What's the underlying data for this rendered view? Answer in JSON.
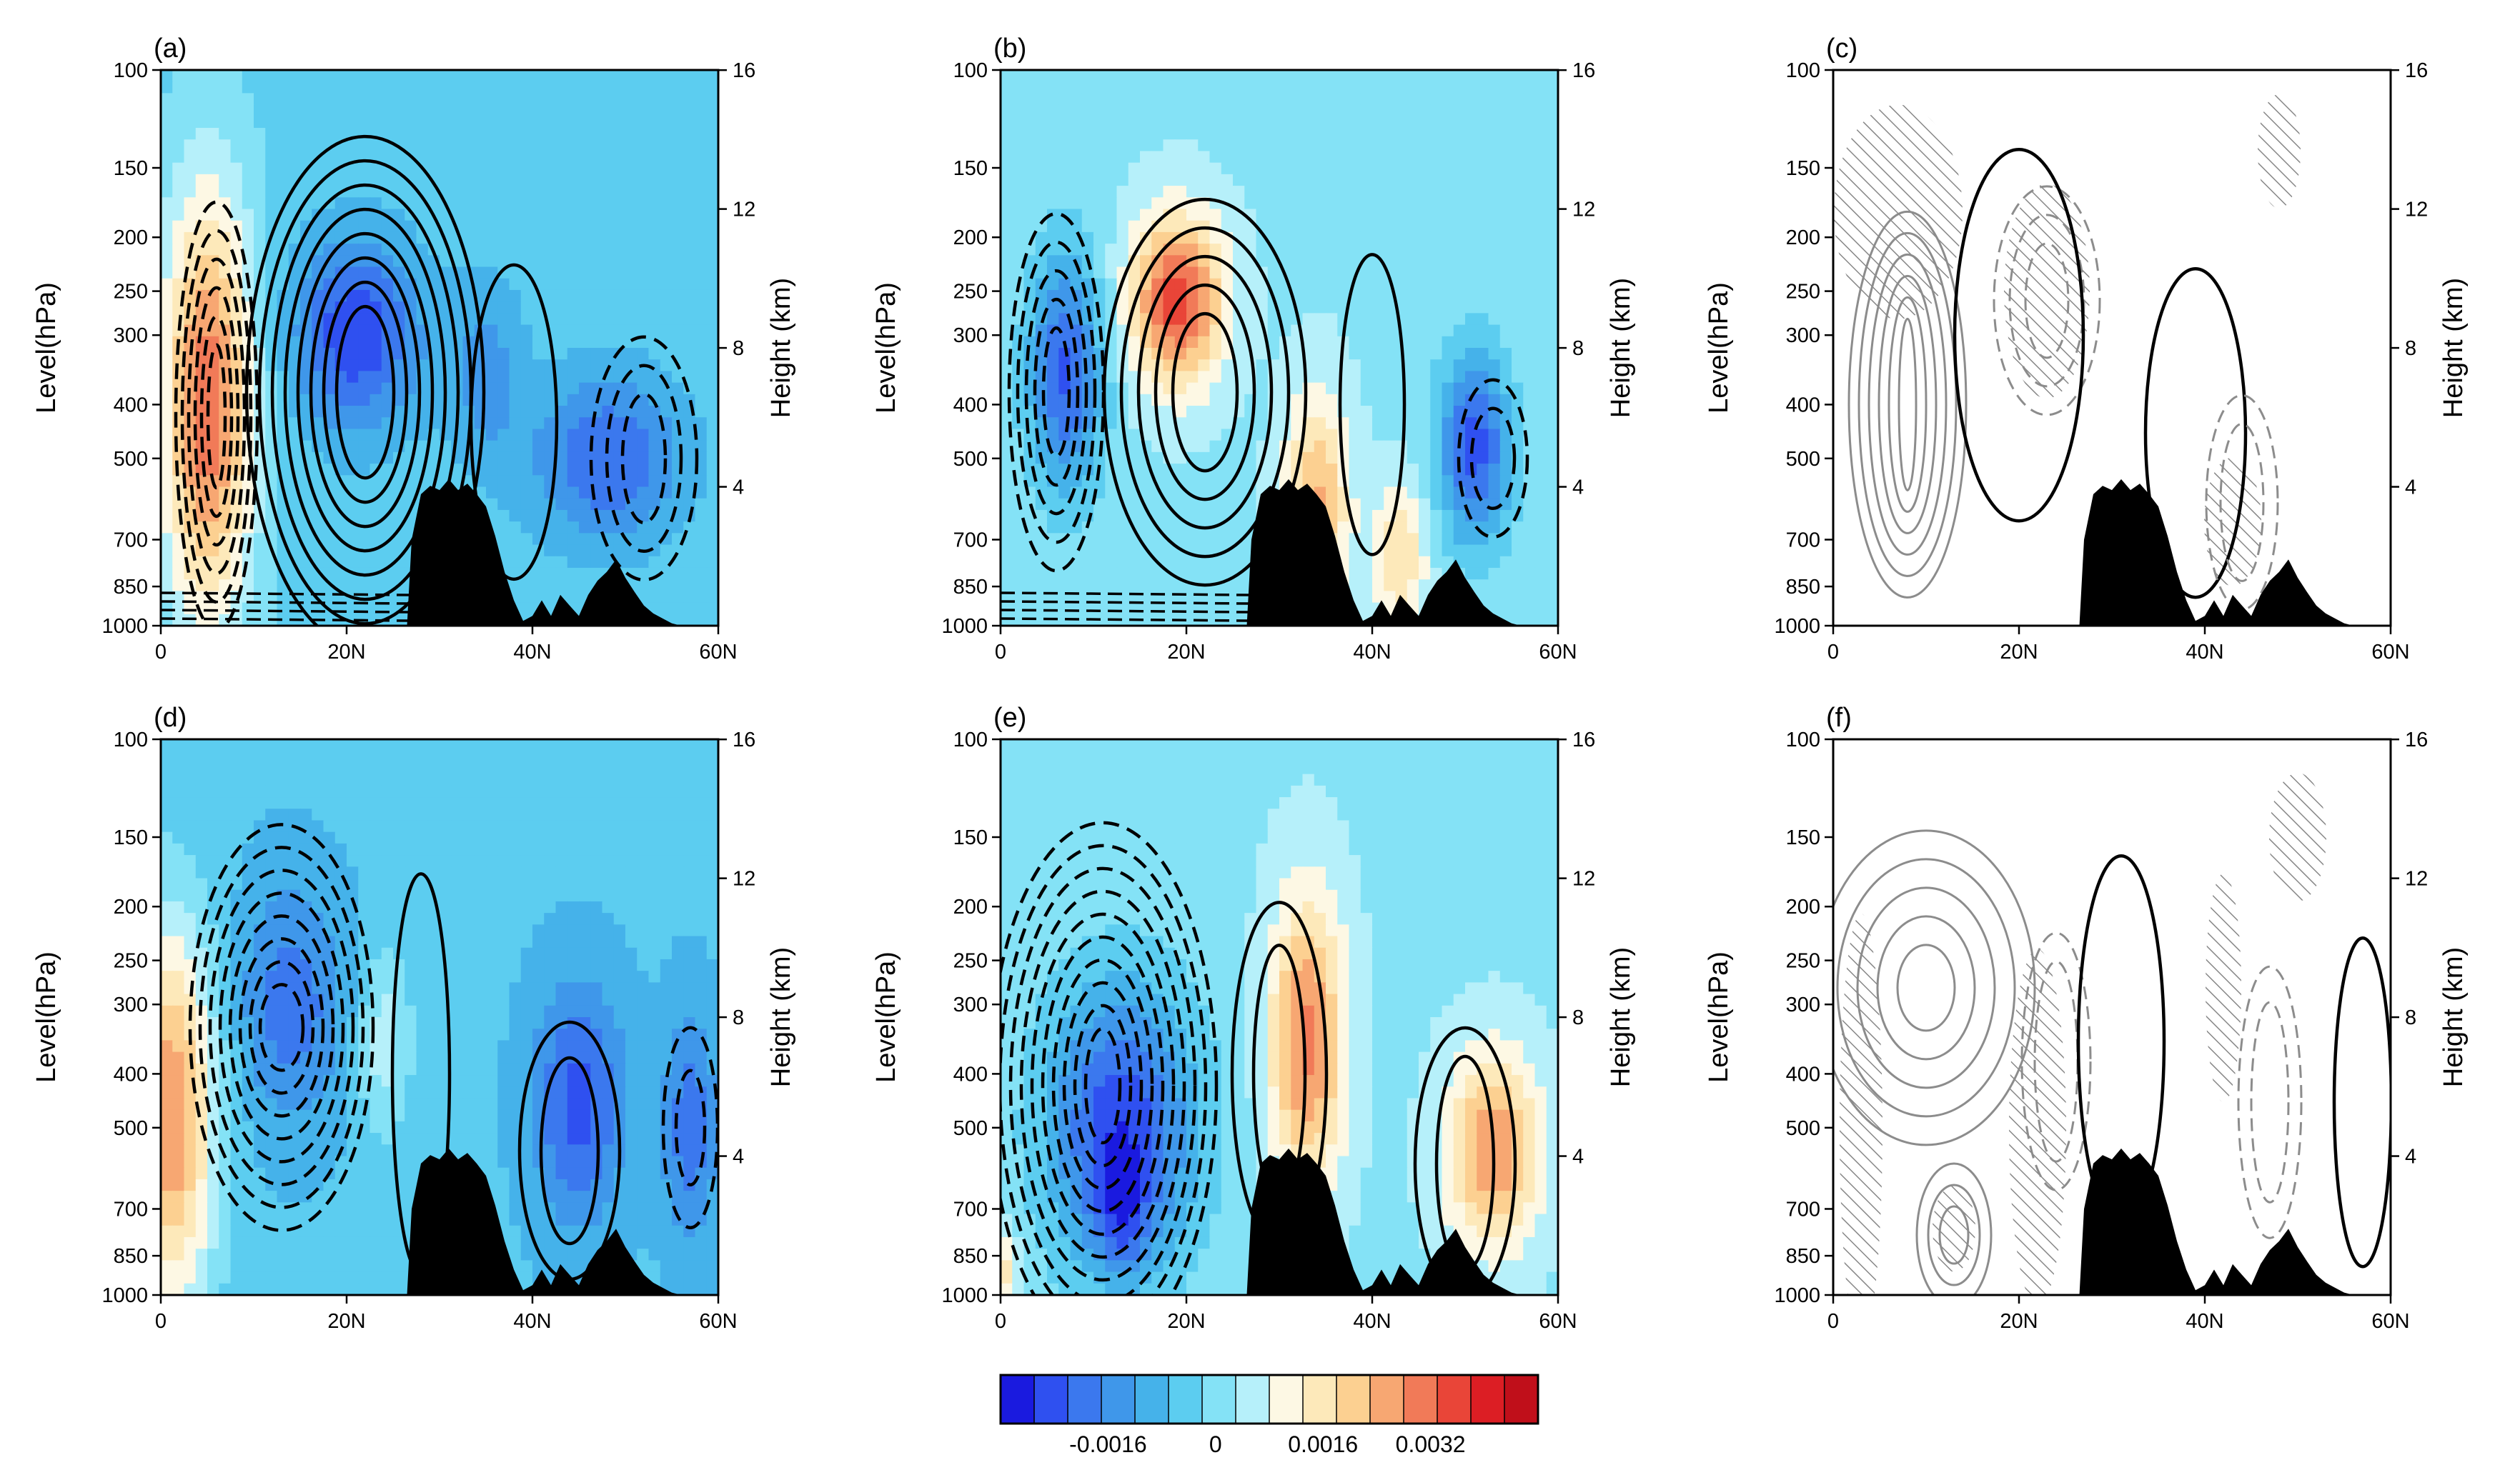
{
  "chart_data": {
    "type": "heatmap",
    "description_free": true,
    "panels": [
      {
        "id": "a",
        "label": "(a)",
        "shading": "a",
        "contours": "solid_dashed_strong",
        "hatch": false
      },
      {
        "id": "b",
        "label": "(b)",
        "shading": "b",
        "contours": "solid_dashed_strong",
        "hatch": false
      },
      {
        "id": "c",
        "label": "(c)",
        "shading": "none",
        "contours": "gray_difference",
        "hatch": true
      },
      {
        "id": "d",
        "label": "(d)",
        "shading": "d",
        "contours": "solid_dashed_strong",
        "hatch": false
      },
      {
        "id": "e",
        "label": "(e)",
        "shading": "e",
        "contours": "solid_dashed_strong",
        "hatch": false
      },
      {
        "id": "f",
        "label": "(f)",
        "shading": "none",
        "contours": "gray_difference",
        "hatch": true
      }
    ],
    "x_axis": {
      "range": [
        0,
        60
      ],
      "ticks": [
        0,
        20,
        40,
        60
      ],
      "tick_labels": [
        "0",
        "20N",
        "40N",
        "60N"
      ]
    },
    "y_axis_left": {
      "label": "Level(hPa)",
      "range": [
        1000,
        100
      ],
      "scale": "log",
      "ticks": [
        100,
        150,
        200,
        250,
        300,
        400,
        500,
        700,
        850,
        1000
      ],
      "tick_labels": [
        "100",
        "150",
        "200",
        "250",
        "300",
        "400",
        "500",
        "700",
        "850",
        "1000"
      ]
    },
    "y_axis_right": {
      "label": "Height (km)",
      "ticks": [
        4,
        8,
        12,
        16
      ],
      "tick_labels": [
        "4",
        "8",
        "12",
        "16"
      ]
    },
    "colorbar": {
      "colors": [
        "#1a1adf",
        "#2f50f0",
        "#3b78ee",
        "#3f97ea",
        "#45b2ea",
        "#5ccdf0",
        "#84e2f6",
        "#b6f0fa",
        "#fdf8e4",
        "#fde9ba",
        "#fcd091",
        "#f7a772",
        "#f17a58",
        "#e94538",
        "#dc1e24",
        "#c00f1a"
      ],
      "tick_labels": [
        "-0.0016",
        "0",
        "0.0016",
        "0.0032"
      ],
      "tick_values": [
        -0.0016,
        0,
        0.0016,
        0.0032
      ],
      "range": [
        -0.0032,
        0.0048
      ]
    }
  }
}
